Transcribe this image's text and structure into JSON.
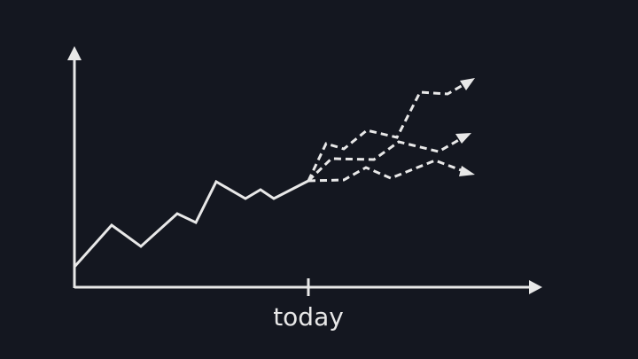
{
  "labels": {
    "today": "today"
  },
  "colors": {
    "background": "#141720",
    "stroke": "#e8e8e8"
  }
}
